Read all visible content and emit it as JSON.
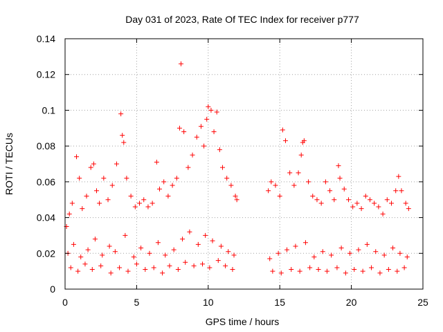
{
  "chart_data": {
    "type": "scatter",
    "title": "Day 031 of 2023, Rate Of TEC Index for receiver p777",
    "xlabel": "GPS time / hours",
    "ylabel": "ROTI / TECUs",
    "xlim": [
      0,
      25
    ],
    "ylim": [
      0,
      0.14
    ],
    "x_ticks": [
      "0",
      "5",
      "10",
      "15",
      "20",
      "25"
    ],
    "y_ticks": [
      "0",
      "0.02",
      "0.04",
      "0.06",
      "0.08",
      "0.1",
      "0.12",
      "0.14"
    ],
    "grid": true,
    "marker": "plus",
    "color": "#ff0000",
    "series": [
      {
        "x": [
          0.1,
          0.3,
          0.5,
          0.8,
          1.0,
          1.2,
          1.5,
          1.8,
          2.0,
          2.2,
          2.4,
          2.7,
          3.0,
          3.3,
          3.6,
          3.9,
          4.0,
          4.1,
          4.3,
          4.6,
          4.9,
          5.2,
          5.5,
          5.8,
          6.1,
          6.4,
          6.6,
          6.9,
          7.2,
          7.5,
          7.8,
          8.0,
          8.1,
          8.3,
          8.6,
          8.9,
          9.2,
          9.5,
          9.7,
          9.9,
          10.0,
          10.2,
          10.4,
          10.6,
          10.8,
          11.0,
          11.3,
          11.6,
          11.9,
          12.0,
          14.2,
          14.4,
          14.7,
          15.0,
          15.2,
          15.4,
          15.7,
          16.0,
          16.3,
          16.5,
          16.6,
          16.7,
          17.0,
          17.3,
          17.6,
          17.9,
          18.2,
          18.5,
          18.8,
          19.1,
          19.2,
          19.5,
          19.8,
          20.1,
          20.4,
          20.7,
          21.0,
          21.3,
          21.6,
          21.9,
          22.2,
          22.5,
          22.8,
          23.1,
          23.3,
          23.5,
          23.8,
          24.0,
          0.2,
          0.6,
          1.1,
          1.6,
          2.1,
          2.6,
          3.1,
          3.5,
          4.2,
          4.8,
          5.3,
          5.9,
          6.5,
          7.0,
          7.6,
          8.2,
          8.7,
          9.3,
          9.8,
          10.3,
          10.9,
          11.4,
          11.8,
          14.3,
          14.9,
          15.5,
          16.1,
          16.8,
          17.4,
          18.0,
          18.6,
          19.3,
          19.9,
          20.5,
          21.1,
          21.7,
          22.3,
          22.9,
          23.4,
          23.9,
          0.4,
          0.9,
          1.4,
          1.9,
          2.5,
          3.2,
          3.8,
          4.4,
          5.0,
          5.6,
          6.2,
          6.8,
          7.3,
          7.9,
          8.4,
          9.0,
          9.6,
          10.1,
          10.7,
          11.2,
          11.7,
          14.5,
          15.1,
          15.8,
          16.4,
          17.1,
          17.7,
          18.3,
          19.0,
          19.6,
          20.2,
          20.8,
          21.4,
          22.0,
          22.6,
          23.2,
          23.7
        ],
        "y": [
          0.035,
          0.042,
          0.048,
          0.074,
          0.062,
          0.045,
          0.052,
          0.068,
          0.07,
          0.055,
          0.048,
          0.062,
          0.05,
          0.058,
          0.07,
          0.098,
          0.086,
          0.082,
          0.062,
          0.052,
          0.046,
          0.048,
          0.05,
          0.046,
          0.048,
          0.071,
          0.056,
          0.06,
          0.052,
          0.058,
          0.062,
          0.09,
          0.126,
          0.088,
          0.068,
          0.075,
          0.085,
          0.091,
          0.08,
          0.095,
          0.102,
          0.1,
          0.088,
          0.099,
          0.078,
          0.068,
          0.062,
          0.058,
          0.052,
          0.05,
          0.055,
          0.06,
          0.058,
          0.052,
          0.089,
          0.083,
          0.065,
          0.058,
          0.065,
          0.075,
          0.082,
          0.083,
          0.06,
          0.052,
          0.05,
          0.048,
          0.06,
          0.055,
          0.05,
          0.069,
          0.062,
          0.056,
          0.05,
          0.046,
          0.048,
          0.045,
          0.052,
          0.05,
          0.048,
          0.046,
          0.042,
          0.05,
          0.048,
          0.055,
          0.063,
          0.055,
          0.048,
          0.045,
          0.02,
          0.025,
          0.018,
          0.022,
          0.028,
          0.019,
          0.024,
          0.021,
          0.03,
          0.018,
          0.023,
          0.02,
          0.026,
          0.019,
          0.022,
          0.028,
          0.032,
          0.025,
          0.03,
          0.027,
          0.024,
          0.021,
          0.019,
          0.017,
          0.02,
          0.022,
          0.024,
          0.026,
          0.018,
          0.021,
          0.019,
          0.023,
          0.02,
          0.022,
          0.025,
          0.021,
          0.019,
          0.023,
          0.02,
          0.018,
          0.012,
          0.01,
          0.014,
          0.011,
          0.013,
          0.009,
          0.012,
          0.01,
          0.014,
          0.011,
          0.012,
          0.009,
          0.013,
          0.011,
          0.015,
          0.013,
          0.014,
          0.012,
          0.016,
          0.013,
          0.011,
          0.01,
          0.009,
          0.011,
          0.01,
          0.012,
          0.011,
          0.01,
          0.012,
          0.009,
          0.011,
          0.01,
          0.012,
          0.009,
          0.011,
          0.01,
          0.012
        ]
      }
    ]
  }
}
